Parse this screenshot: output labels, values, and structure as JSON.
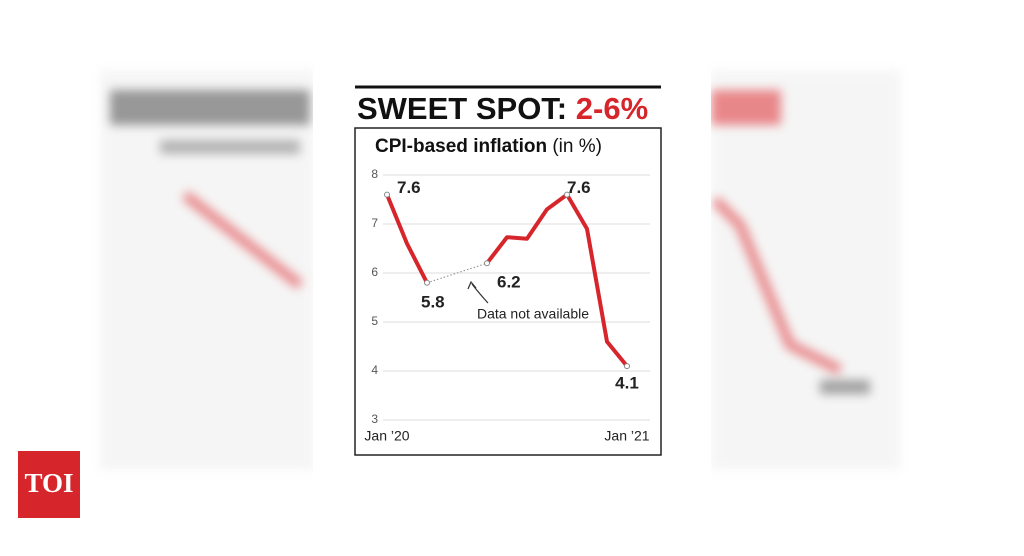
{
  "branding": {
    "logo": "TOI"
  },
  "chart_data": {
    "type": "line",
    "title": "SWEET SPOT:",
    "title_highlight": "2-6%",
    "title_highlight_color": "#d7262b",
    "subtitle": "CPI-based inflation",
    "subtitle_unit": "(in %)",
    "annotation": "Data not available",
    "categories": [
      "Jan ’20",
      null,
      null,
      null,
      null,
      null,
      null,
      null,
      null,
      null,
      null,
      null,
      "Jan ’21"
    ],
    "series": [
      {
        "name": "CPI-based inflation",
        "color": "#d7262b",
        "values": [
          7.6,
          6.6,
          5.8,
          null,
          null,
          6.2,
          6.73,
          6.7,
          7.3,
          7.6,
          6.9,
          4.6,
          4.1
        ]
      }
    ],
    "labeled_indices": [
      0,
      2,
      5,
      9,
      12
    ],
    "ylim": [
      3,
      8
    ],
    "yticks": [
      3,
      4,
      5,
      6,
      7,
      8
    ],
    "grid": true
  }
}
